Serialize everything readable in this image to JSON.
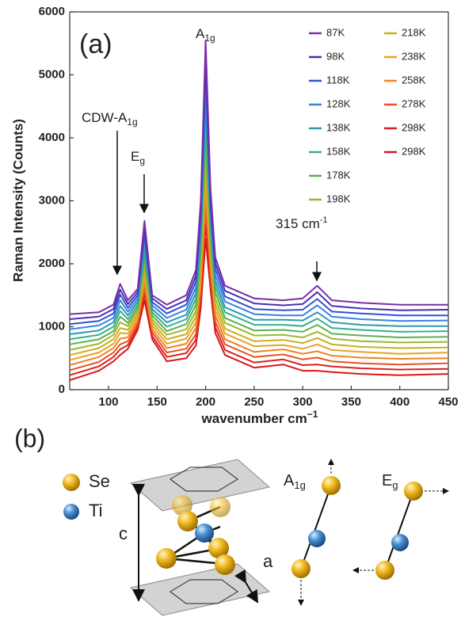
{
  "chart_data": {
    "type": "line",
    "ylabel": "Raman Intensity (Counts)",
    "xlabel": {
      "text": "wavenumber cm",
      "sup": "−1"
    },
    "annotations": [
      {
        "text": "(a)"
      },
      {
        "text": "A",
        "sub": "1g"
      },
      {
        "text": "CDW-A",
        "sub": "1g"
      },
      {
        "text": "E",
        "sub": "g"
      },
      {
        "text": "315 cm",
        "sup": "-1"
      }
    ],
    "xlim": [
      60,
      450
    ],
    "xticks": [
      100,
      150,
      200,
      250,
      300,
      350,
      400,
      450
    ],
    "ylim": [
      0,
      6000
    ],
    "yticks": [
      0,
      1000,
      2000,
      3000,
      4000,
      5000,
      6000
    ],
    "x": [
      60,
      90,
      105,
      112,
      120,
      130,
      137,
      145,
      160,
      180,
      190,
      195,
      200,
      205,
      210,
      220,
      250,
      280,
      300,
      315,
      330,
      360,
      400,
      450
    ],
    "series": [
      {
        "name": "87K",
        "color": "#7a2ea8",
        "values": [
          1200,
          1230,
          1350,
          1680,
          1420,
          1600,
          2680,
          1500,
          1350,
          1500,
          1900,
          3000,
          5550,
          3200,
          2100,
          1650,
          1450,
          1420,
          1450,
          1650,
          1420,
          1380,
          1350,
          1350
        ]
      },
      {
        "name": "98K",
        "color": "#4a30b0",
        "values": [
          1120,
          1160,
          1280,
          1590,
          1360,
          1550,
          2580,
          1450,
          1280,
          1420,
          1810,
          2870,
          5310,
          3080,
          2010,
          1570,
          1370,
          1340,
          1360,
          1550,
          1330,
          1290,
          1260,
          1270
        ]
      },
      {
        "name": "118K",
        "color": "#3252d2",
        "values": [
          1040,
          1090,
          1210,
          1510,
          1300,
          1500,
          2490,
          1390,
          1210,
          1350,
          1720,
          2740,
          5070,
          2950,
          1920,
          1480,
          1280,
          1260,
          1270,
          1440,
          1240,
          1210,
          1180,
          1180
        ]
      },
      {
        "name": "128K",
        "color": "#3a82e0",
        "values": [
          960,
          1020,
          1140,
          1420,
          1240,
          1450,
          2390,
          1340,
          1140,
          1270,
          1620,
          2610,
          4820,
          2830,
          1820,
          1400,
          1200,
          1180,
          1180,
          1340,
          1160,
          1120,
          1090,
          1100
        ]
      },
      {
        "name": "138K",
        "color": "#2c9ab2",
        "values": [
          880,
          940,
          1070,
          1330,
          1180,
          1400,
          2290,
          1280,
          1070,
          1190,
          1530,
          2480,
          4580,
          2710,
          1730,
          1310,
          1110,
          1110,
          1100,
          1230,
          1070,
          1030,
          1010,
          1010
        ]
      },
      {
        "name": "158K",
        "color": "#36b090",
        "values": [
          800,
          870,
          1000,
          1250,
          1120,
          1350,
          2200,
          1230,
          1000,
          1120,
          1440,
          2350,
          4340,
          2580,
          1640,
          1230,
          1030,
          1030,
          1010,
          1130,
          980,
          950,
          920,
          930
        ]
      },
      {
        "name": "178K",
        "color": "#5cb050",
        "values": [
          720,
          800,
          930,
          1160,
          1060,
          1300,
          2100,
          1180,
          930,
          1040,
          1350,
          2220,
          4100,
          2460,
          1550,
          1140,
          940,
          950,
          920,
          1030,
          890,
          860,
          830,
          840
        ]
      },
      {
        "name": "198K",
        "color": "#9cb830",
        "values": [
          630,
          730,
          870,
          1070,
          1010,
          1250,
          2000,
          1120,
          870,
          960,
          1250,
          2080,
          3850,
          2340,
          1450,
          1060,
          860,
          870,
          830,
          920,
          810,
          770,
          750,
          760
        ]
      },
      {
        "name": "218K",
        "color": "#c8b020",
        "values": [
          550,
          660,
          800,
          980,
          950,
          1200,
          1900,
          1070,
          800,
          880,
          1160,
          1950,
          3610,
          2220,
          1360,
          970,
          770,
          790,
          740,
          820,
          720,
          680,
          660,
          670
        ]
      },
      {
        "name": "238K",
        "color": "#e8a424",
        "values": [
          470,
          590,
          730,
          900,
          890,
          1150,
          1810,
          1020,
          730,
          810,
          1070,
          1820,
          3370,
          2090,
          1270,
          890,
          690,
          710,
          650,
          720,
          630,
          600,
          570,
          590
        ]
      },
      {
        "name": "258K",
        "color": "#f08224",
        "values": [
          390,
          520,
          660,
          810,
          830,
          1100,
          1710,
          960,
          660,
          730,
          980,
          1690,
          3130,
          1970,
          1180,
          800,
          600,
          640,
          570,
          610,
          540,
          510,
          490,
          500
        ]
      },
      {
        "name": "278K",
        "color": "#e85424",
        "values": [
          310,
          440,
          590,
          720,
          770,
          1050,
          1610,
          910,
          590,
          650,
          880,
          1560,
          2880,
          1850,
          1080,
          720,
          520,
          560,
          480,
          510,
          450,
          420,
          400,
          420
        ]
      },
      {
        "name": "298K",
        "color": "#dc2020",
        "values": [
          230,
          370,
          520,
          640,
          710,
          1000,
          1520,
          850,
          520,
          580,
          790,
          1430,
          2640,
          1720,
          990,
          630,
          430,
          480,
          390,
          400,
          370,
          340,
          320,
          330
        ]
      },
      {
        "name": "298K",
        "color": "#d81818",
        "values": [
          150,
          300,
          450,
          550,
          650,
          950,
          1420,
          800,
          450,
          500,
          700,
          1300,
          2400,
          1600,
          900,
          550,
          350,
          400,
          300,
          300,
          280,
          250,
          230,
          250
        ]
      }
    ]
  },
  "diagram": {
    "label": "(b)",
    "legend": [
      "Se",
      "Ti"
    ],
    "c": "c",
    "a": "a",
    "modes": [
      {
        "text": "A",
        "sub": "1g"
      },
      {
        "text": "E",
        "sub": "g"
      }
    ]
  }
}
